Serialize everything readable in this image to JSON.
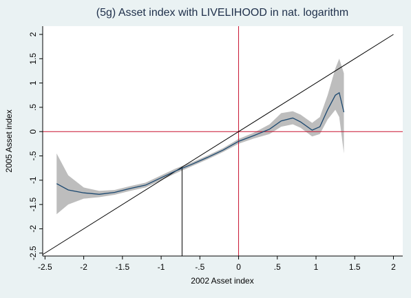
{
  "chart_data": {
    "type": "line",
    "title": "(5g) Asset index with LIVELIHOOD in nat. logarithm",
    "x_label": "2002 Asset index",
    "y_label": "2005 Asset index",
    "xlim": [
      -2.53,
      2.12
    ],
    "ylim": [
      -2.56,
      2.17
    ],
    "xticks": [
      -2.5,
      -2,
      -1.5,
      -1,
      {
        "value": -0.5,
        "label": "-.5"
      },
      0,
      {
        "value": 0.5,
        "label": ".5"
      },
      1,
      1.5,
      2
    ],
    "yticks": [
      -2.5,
      -2,
      -1.5,
      -1,
      {
        "value": -0.5,
        "label": "-.5"
      },
      0,
      {
        "value": 0.5,
        "label": ".5"
      },
      1,
      1.5,
      2
    ],
    "x": [
      -2.35,
      -2.2,
      -2.0,
      -1.8,
      -1.6,
      -1.4,
      -1.2,
      -1.0,
      -0.8,
      -0.6,
      -0.4,
      -0.2,
      0,
      0.2,
      0.4,
      0.55,
      0.7,
      0.8,
      0.95,
      1.05,
      1.15,
      1.25,
      1.3,
      1.36
    ],
    "series": [
      {
        "color": "#1a476f",
        "values": [
          -1.07,
          -1.2,
          -1.26,
          -1.29,
          -1.25,
          -1.17,
          -1.1,
          -0.95,
          -0.8,
          -0.67,
          -0.53,
          -0.38,
          -0.2,
          -0.08,
          0.05,
          0.22,
          0.28,
          0.2,
          0.03,
          0.1,
          0.45,
          0.75,
          0.8,
          0.4
        ]
      }
    ],
    "band": {
      "color": "#bdbdbd",
      "lower": [
        -1.7,
        -1.5,
        -1.38,
        -1.35,
        -1.3,
        -1.22,
        -1.15,
        -1.0,
        -0.85,
        -0.71,
        -0.57,
        -0.42,
        -0.25,
        -0.14,
        -0.05,
        0.1,
        0.15,
        0.08,
        -0.1,
        -0.05,
        0.25,
        0.45,
        0.3,
        -0.45
      ],
      "upper": [
        -0.45,
        -0.9,
        -1.15,
        -1.22,
        -1.2,
        -1.12,
        -1.05,
        -0.9,
        -0.75,
        -0.63,
        -0.49,
        -0.34,
        -0.15,
        -0.02,
        0.15,
        0.38,
        0.42,
        0.35,
        0.18,
        0.3,
        0.75,
        1.3,
        1.5,
        1.2
      ]
    },
    "reference_lines": [
      {
        "orientation": "horizontal",
        "value": 0,
        "color": "#c8102e"
      },
      {
        "orientation": "vertical",
        "value": 0,
        "color": "#c8102e"
      },
      {
        "orientation": "vertical",
        "value": -0.73,
        "to": -0.73,
        "color": "#000000"
      }
    ],
    "diagonal": {
      "x": [
        -2.53,
        2
      ],
      "y": [
        -2.53,
        2
      ],
      "color": "#000000"
    }
  }
}
